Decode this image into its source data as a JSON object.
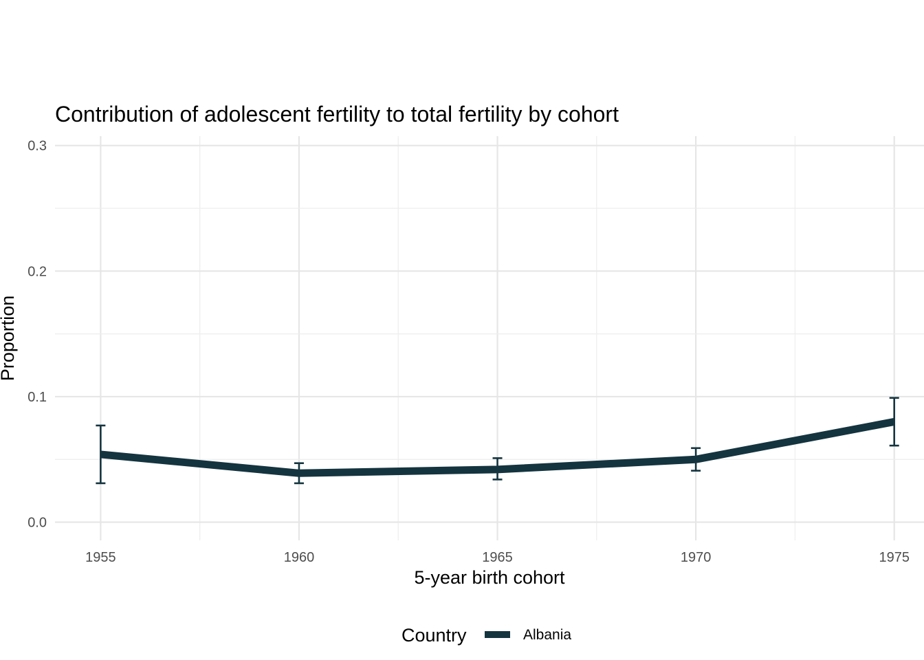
{
  "chart_data": {
    "type": "line",
    "title": "Contribution of adolescent fertility to total fertility by cohort",
    "xlabel": "5-year birth cohort",
    "ylabel": "Proportion",
    "x": [
      1955,
      1960,
      1965,
      1970,
      1975
    ],
    "x_ticks": [
      "1955",
      "1960",
      "1965",
      "1970",
      "1975"
    ],
    "y_ticks": [
      "0.0",
      "0.1",
      "0.2",
      "0.3"
    ],
    "xlim": [
      1953.85,
      1975.75
    ],
    "ylim": [
      -0.0145,
      0.3075
    ],
    "grid": true,
    "legend": {
      "title": "Country",
      "position": "bottom"
    },
    "series": [
      {
        "name": "Albania",
        "color": "#14343f",
        "values": [
          0.054,
          0.039,
          0.042,
          0.05,
          0.08
        ],
        "lower": [
          0.031,
          0.031,
          0.034,
          0.041,
          0.061
        ],
        "upper": [
          0.077,
          0.047,
          0.051,
          0.059,
          0.099
        ]
      }
    ]
  }
}
